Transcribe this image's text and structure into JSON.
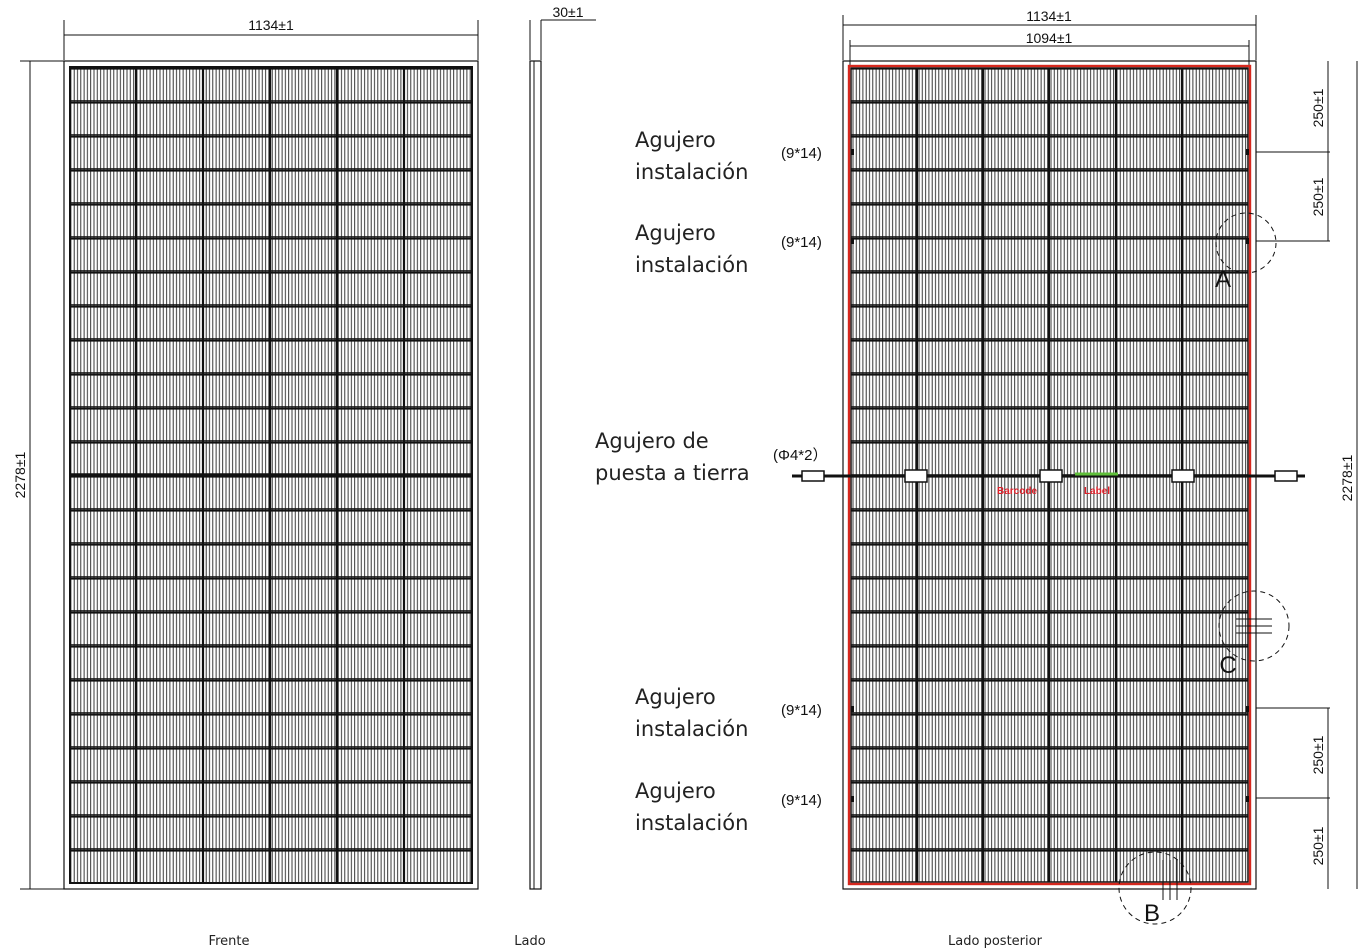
{
  "front": {
    "width_dim": "1134±1",
    "height_dim": "2278±1",
    "caption": "Frente"
  },
  "side": {
    "thickness_dim": "30±1",
    "caption": "Lado"
  },
  "back": {
    "width_dim": "1134±1",
    "inner_width_dim": "1094±1",
    "height_dim": "2278±1",
    "caption": "Lado posterior",
    "spacing_dims": [
      "250±1",
      "250±1",
      "250±1",
      "250±1"
    ],
    "detail_labels": [
      "A",
      "B",
      "C"
    ],
    "barcode_label": "Barcode",
    "label_label": "Label"
  },
  "callouts": {
    "install_hole_line1": "Agujero",
    "install_hole_line2": "instalación",
    "install_hole_spec": "(9*14)",
    "ground_hole_line1": "Agujero de",
    "ground_hole_line2": "puesta a tierra",
    "ground_hole_spec": "(Φ4*2）"
  },
  "colors": {
    "frame_red": "#d6281e",
    "line": "#111111",
    "barcode_red": "#e0202a",
    "label_green": "#5fbf3a"
  }
}
